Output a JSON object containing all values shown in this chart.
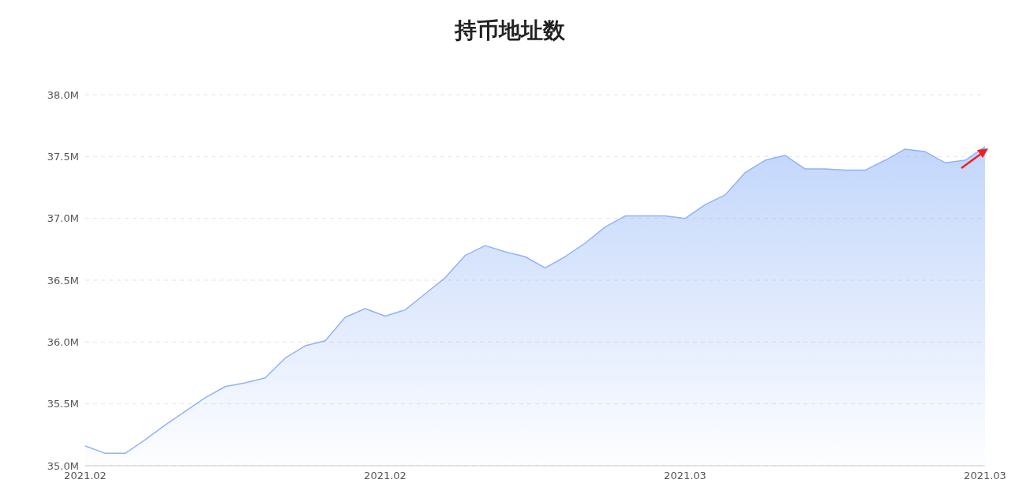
{
  "chart_data": {
    "type": "area",
    "title": "持币地址数",
    "categories": [
      "2021.02",
      null,
      null,
      null,
      null,
      null,
      null,
      null,
      null,
      null,
      null,
      null,
      null,
      null,
      null,
      "2021.02",
      null,
      null,
      null,
      null,
      null,
      null,
      null,
      null,
      null,
      null,
      null,
      null,
      null,
      null,
      "2021.03",
      null,
      null,
      null,
      null,
      null,
      null,
      null,
      null,
      null,
      null,
      null,
      null,
      null,
      null,
      "2021.03"
    ],
    "values": [
      35.16,
      35.1,
      35.1,
      35.21,
      35.33,
      35.44,
      35.55,
      35.64,
      35.67,
      35.71,
      35.87,
      35.97,
      36.01,
      36.2,
      36.27,
      36.21,
      36.26,
      36.39,
      36.52,
      36.7,
      36.78,
      36.73,
      36.69,
      36.6,
      36.69,
      36.8,
      36.93,
      37.02,
      37.02,
      37.02,
      37.0,
      37.11,
      37.19,
      37.37,
      37.47,
      37.51,
      37.4,
      37.4,
      37.39,
      37.39,
      37.47,
      37.56,
      37.54,
      37.45,
      37.47,
      37.58
    ],
    "color": "#8fb4f8",
    "ylim": [
      35,
      38
    ],
    "yticks": [
      {
        "value": 35,
        "label": "35.0M"
      },
      {
        "value": 35.5,
        "label": "35.5M"
      },
      {
        "value": 36,
        "label": "36.0M"
      },
      {
        "value": 36.5,
        "label": "36.5M"
      },
      {
        "value": 37,
        "label": "37.0M"
      },
      {
        "value": 37.5,
        "label": "37.5M"
      },
      {
        "value": 38,
        "label": "38.0M"
      }
    ],
    "grid": "y"
  }
}
